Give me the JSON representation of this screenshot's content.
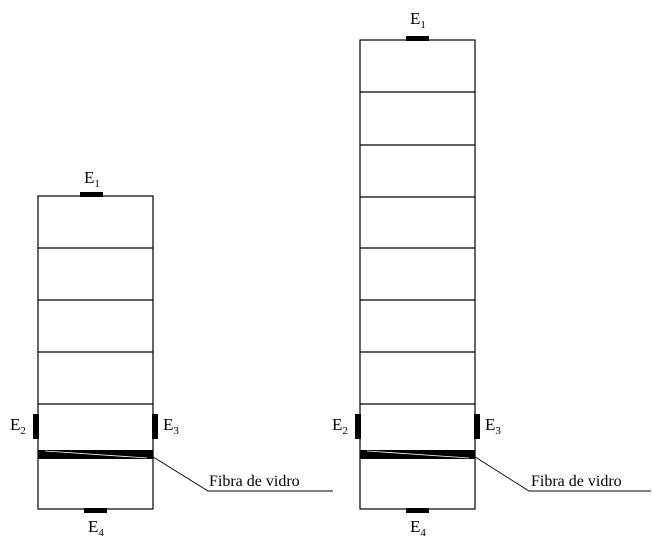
{
  "left_column": {
    "electrodes": {
      "e1": {
        "letter": "E",
        "index": "1"
      },
      "e2": {
        "letter": "E",
        "index": "2"
      },
      "e3": {
        "letter": "E",
        "index": "3"
      },
      "e4": {
        "letter": "E",
        "index": "4"
      }
    },
    "fiber_label": "Fibra de vidro"
  },
  "right_column": {
    "electrodes": {
      "e1": {
        "letter": "E",
        "index": "1"
      },
      "e2": {
        "letter": "E",
        "index": "2"
      },
      "e3": {
        "letter": "E",
        "index": "3"
      },
      "e4": {
        "letter": "E",
        "index": "4"
      }
    },
    "fiber_label": "Fibra de vidro"
  }
}
